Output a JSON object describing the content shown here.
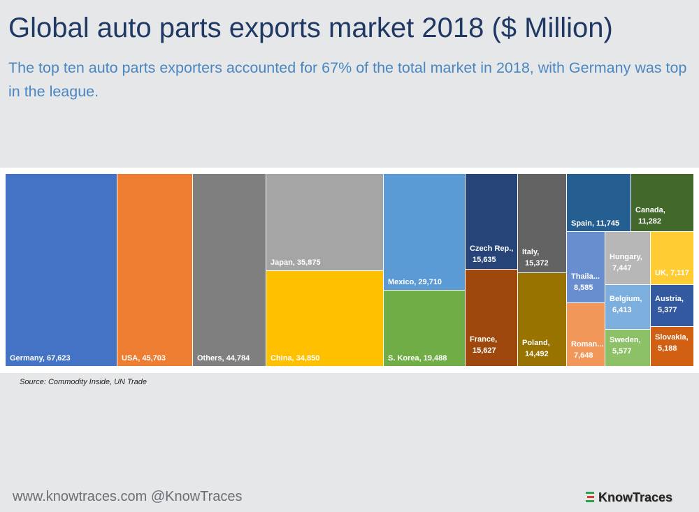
{
  "title": "Global auto parts exports market 2018 ($ Million)",
  "subtitle": "The top ten auto parts exporters accounted for 67% of the total market in 2018, with Germany was top in the league.",
  "source": "Source: Commodity Inside, UN Trade",
  "footer": {
    "url_handle": "www.knowtraces.com  @KnowTraces",
    "logo": "KnowTraces"
  },
  "chart_data": {
    "type": "treemap",
    "title": "",
    "items": [
      {
        "label": "Germany",
        "display": "Germany,  67,623",
        "value": 67623,
        "color": "#4472c4"
      },
      {
        "label": "USA",
        "display": "USA,  45,703",
        "value": 45703,
        "color": "#ed7d31"
      },
      {
        "label": "Others",
        "display": "Others,  44,784",
        "value": 44784,
        "color": "#7f7f7f"
      },
      {
        "label": "Japan",
        "display": "Japan,  35,875",
        "value": 35875,
        "color": "#a5a5a5"
      },
      {
        "label": "China",
        "display": "China,  34,850",
        "value": 34850,
        "color": "#ffc000"
      },
      {
        "label": "Mexico",
        "display": "Mexico,  29,710",
        "value": 29710,
        "color": "#5b9bd5"
      },
      {
        "label": "S. Korea",
        "display": "S. Korea,  19,488",
        "value": 19488,
        "color": "#70ad47"
      },
      {
        "label": "Czech Rep.",
        "display": "Czech Rep., 15,635",
        "value": 15635,
        "color": "#264478"
      },
      {
        "label": "France",
        "display": "France, 15,627",
        "value": 15627,
        "color": "#9e480e"
      },
      {
        "label": "Italy",
        "display": "Italy, 15,372",
        "value": 15372,
        "color": "#636363"
      },
      {
        "label": "Poland",
        "display": "Poland, 14,492",
        "value": 14492,
        "color": "#997300"
      },
      {
        "label": "Spain",
        "display": "Spain,  11,745",
        "value": 11745,
        "color": "#255e91"
      },
      {
        "label": "Canada",
        "display": "Canada, 11,282",
        "value": 11282,
        "color": "#43682b"
      },
      {
        "label": "Thaila...",
        "display": "Thaila... 8,585",
        "value": 8585,
        "color": "#698ed0"
      },
      {
        "label": "Roman...",
        "display": "Roman... 7,648",
        "value": 7648,
        "color": "#f1975a"
      },
      {
        "label": "Hungary",
        "display": "Hungary, 7,447",
        "value": 7447,
        "color": "#b7b7b7"
      },
      {
        "label": "UK",
        "display": "UK,  7,117",
        "value": 7117,
        "color": "#ffcd33"
      },
      {
        "label": "Belgium",
        "display": "Belgium, 6,413",
        "value": 6413,
        "color": "#7cafdd"
      },
      {
        "label": "Austria",
        "display": "Austria, 5,377",
        "value": 5377,
        "color": "#335aa1"
      },
      {
        "label": "Sweden",
        "display": "Sweden, 5,577",
        "value": 5577,
        "color": "#8cc168"
      },
      {
        "label": "Slovakia",
        "display": "Slovakia, 5,188",
        "value": 5188,
        "color": "#d26012"
      }
    ]
  },
  "colors": {
    "title": "#1f3864",
    "subtitle": "#4a86c0",
    "background": "#e6e7e9"
  }
}
